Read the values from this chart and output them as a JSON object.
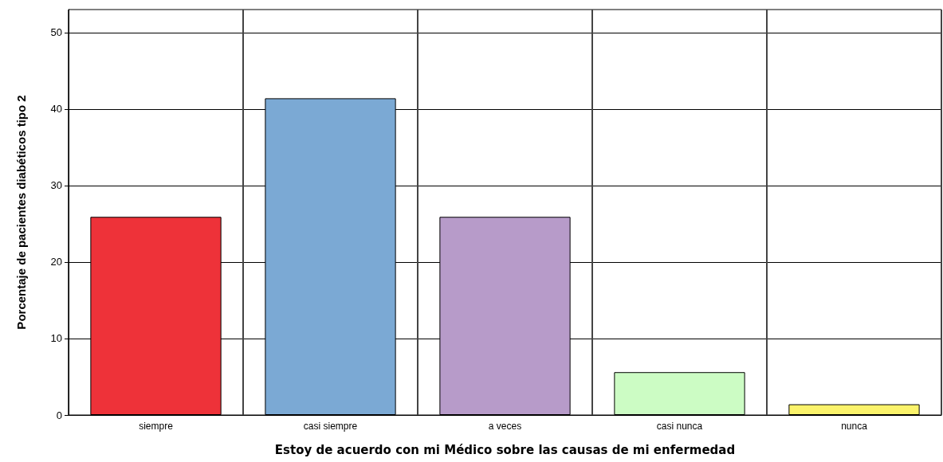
{
  "chart_data": {
    "type": "bar",
    "xlabel": "Estoy de acuerdo con mi Médico sobre las causas de mi enfermedad",
    "ylabel": "Porcentaje de pacientes diabéticos tipo 2",
    "categories": [
      "siempre",
      "casi siempre",
      "a veces",
      "casi nunca",
      "nunca"
    ],
    "values": [
      25.9,
      41.4,
      25.9,
      5.6,
      1.4
    ],
    "colors": [
      "#ee3239",
      "#7ba9d4",
      "#b79bc9",
      "#ccfcc4",
      "#fbf36b"
    ],
    "ylim": [
      0,
      53
    ],
    "yticks": [
      0,
      10,
      20,
      30,
      40,
      50
    ],
    "grid": true
  }
}
